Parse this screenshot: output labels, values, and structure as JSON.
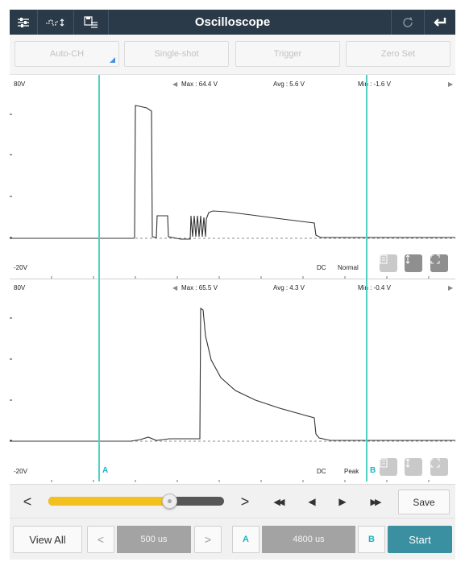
{
  "app": {
    "title": "Oscilloscope"
  },
  "toolbar": {
    "icons": [
      "settings-sliders-icon",
      "waveform-adjust-icon",
      "save-list-icon",
      "refresh-icon",
      "back-return-icon"
    ]
  },
  "mode_buttons": {
    "auto_ch": "Auto-CH",
    "single_shot": "Single-shot",
    "trigger": "Trigger",
    "zero_set": "Zero Set"
  },
  "channels": [
    {
      "scale_top": "80V",
      "scale_bottom": "-20V",
      "max": "Max : 64.4 V",
      "avg": "Avg : 5.6 V",
      "min": "Min : -1.6 V",
      "coupling": "DC",
      "mode": "Normal"
    },
    {
      "scale_top": "80V",
      "scale_bottom": "-20V",
      "max": "Max : 65.5 V",
      "avg": "Avg : 4.3 V",
      "min": "Min : -0.4 V",
      "coupling": "DC",
      "mode": "Peak"
    }
  ],
  "cursors": {
    "a_label": "A",
    "b_label": "B"
  },
  "controls": {
    "prev": "<",
    "next": ">",
    "rewind": "◀◀",
    "step_back": "◀",
    "step_forward": "▶",
    "fast_forward": "▶▶",
    "save": "Save",
    "view_all": "View All",
    "time_prev": "<",
    "time_base": "500 us",
    "time_next": ">",
    "cursor_a": "A",
    "cursor_delta": "4800 us",
    "cursor_b": "B",
    "start": "Start",
    "slider_position": 0.69
  },
  "colors": {
    "topbar": "#2b3a48",
    "cursor": "#4fd1c5",
    "slider": "#f4c020",
    "start_button": "#3a8fa1",
    "trace": "#333333"
  }
}
